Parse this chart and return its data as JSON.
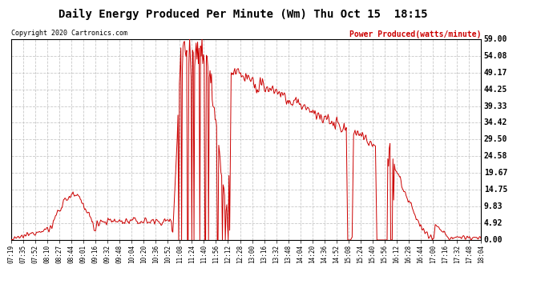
{
  "title": "Daily Energy Produced Per Minute (Wm) Thu Oct 15  18:15",
  "copyright": "Copyright 2020 Cartronics.com",
  "legend_label": "Power Produced(watts/minute)",
  "background_color": "#FFFFFF",
  "plot_bg_color": "#FFFFFF",
  "line_color": "#CC0000",
  "grid_color": "#BBBBBB",
  "yticks": [
    0.0,
    4.92,
    9.83,
    14.75,
    19.67,
    24.58,
    29.5,
    34.42,
    39.33,
    44.25,
    49.17,
    54.08,
    59.0
  ],
  "ymax": 59.0,
  "ymin": 0.0,
  "xtick_labels": [
    "07:19",
    "07:35",
    "07:52",
    "08:10",
    "08:27",
    "08:44",
    "09:01",
    "09:16",
    "09:32",
    "09:48",
    "10:04",
    "10:20",
    "10:36",
    "10:52",
    "11:08",
    "11:24",
    "11:40",
    "11:56",
    "12:12",
    "12:28",
    "13:00",
    "13:16",
    "13:32",
    "13:48",
    "14:04",
    "14:20",
    "14:36",
    "14:52",
    "15:08",
    "15:24",
    "15:40",
    "15:56",
    "16:12",
    "16:28",
    "16:44",
    "17:00",
    "17:16",
    "17:32",
    "17:48",
    "18:04"
  ]
}
